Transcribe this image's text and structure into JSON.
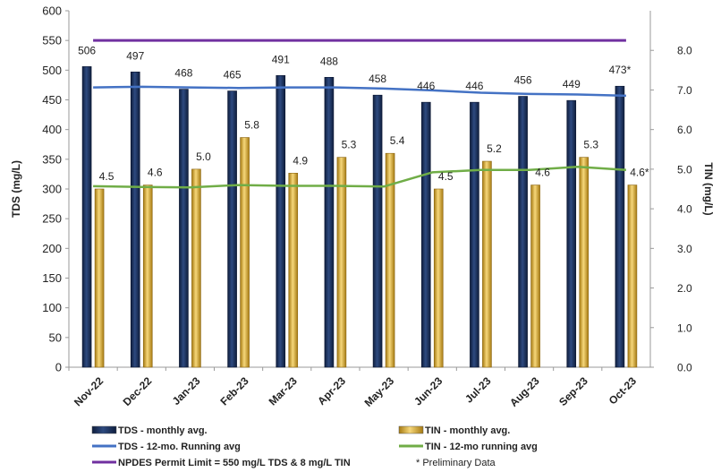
{
  "chart_data": {
    "type": "bar",
    "categories": [
      "Nov-22",
      "Dec-22",
      "Jan-23",
      "Feb-23",
      "Mar-23",
      "Apr-23",
      "May-23",
      "Jun-23",
      "Jul-23",
      "Aug-23",
      "Sep-23",
      "Oct-23"
    ],
    "series": [
      {
        "name": "TDS - monthly avg.",
        "axis": "left",
        "kind": "bar",
        "color": "#1f3864",
        "values": [
          506,
          497,
          468,
          465,
          491,
          488,
          458,
          446,
          446,
          456,
          449,
          473
        ],
        "labels": [
          "506",
          "497",
          "468",
          "465",
          "491",
          "488",
          "458",
          "446",
          "446",
          "456",
          "449",
          "473*"
        ]
      },
      {
        "name": "TIN - monthly avg.",
        "axis": "right",
        "kind": "bar",
        "color": "#e2b33b",
        "values": [
          4.5,
          4.6,
          5.0,
          5.8,
          4.9,
          5.3,
          5.4,
          4.5,
          5.2,
          4.6,
          5.3,
          4.6
        ],
        "labels": [
          "4.5",
          "4.6",
          "5.0",
          "5.8",
          "4.9",
          "5.3",
          "5.4",
          "4.5",
          "5.2",
          "4.6",
          "5.3",
          "4.6*"
        ]
      },
      {
        "name": "TDS - 12-mo. Running avg",
        "axis": "left",
        "kind": "line",
        "color": "#4472c4",
        "values": [
          471,
          472,
          471,
          470,
          471,
          471,
          469,
          466,
          462,
          460,
          459,
          457
        ]
      },
      {
        "name": "TIN - 12-mo running avg",
        "axis": "right",
        "kind": "line",
        "color": "#70ad47",
        "values": [
          4.57,
          4.55,
          4.54,
          4.6,
          4.58,
          4.58,
          4.56,
          4.92,
          4.98,
          4.98,
          5.06,
          4.98
        ]
      },
      {
        "name": "NPDES Permit Limit = 550 mg/L TDS & 8 mg/L TIN",
        "axis": "left",
        "kind": "line",
        "color": "#7030a0",
        "values": [
          550,
          550,
          550,
          550,
          550,
          550,
          550,
          550,
          550,
          550,
          550,
          550
        ]
      }
    ],
    "ylabel": "TDS (mg/L)",
    "y2label": "TIN (mg/L)",
    "xlabel": "",
    "ylim": [
      0,
      600
    ],
    "y2lim": [
      0,
      9
    ],
    "yticks": [
      "0",
      "50",
      "100",
      "150",
      "200",
      "250",
      "300",
      "350",
      "400",
      "450",
      "500",
      "550",
      "600"
    ],
    "y2ticks": [
      "0.0",
      "1.0",
      "2.0",
      "3.0",
      "4.0",
      "5.0",
      "6.0",
      "7.0",
      "8.0"
    ],
    "grid": false,
    "legend_position": "bottom",
    "note": "* Preliminary Data"
  }
}
